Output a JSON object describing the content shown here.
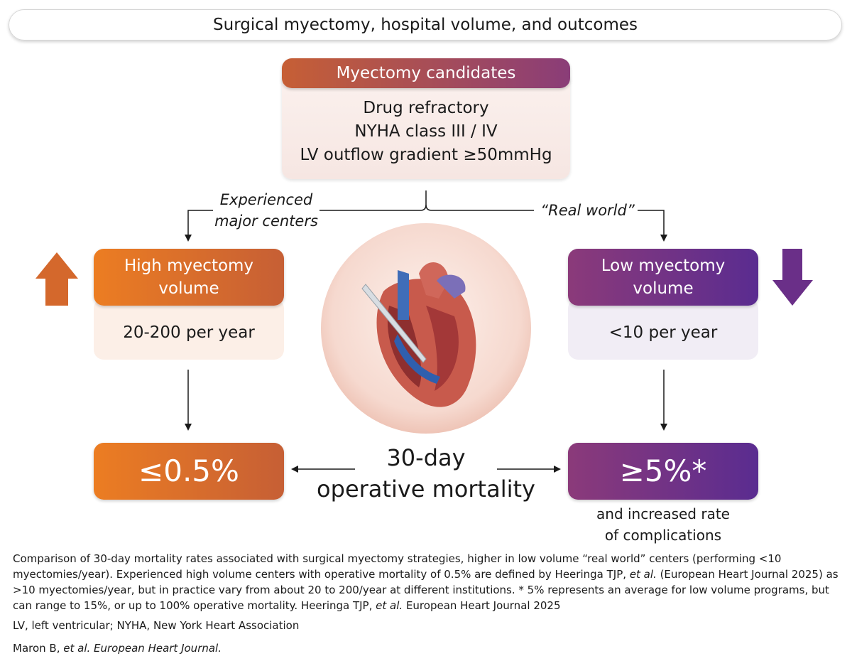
{
  "title": "Surgical myectomy, hospital volume, and outcomes",
  "candidates": {
    "header": "Myectomy candidates",
    "lines": [
      "Drug refractory",
      "NYHA class III / IV",
      "LV outflow gradient ≥50mmHg"
    ]
  },
  "left": {
    "branch": "Experienced major centers",
    "title": "High myectomy volume",
    "detail": "20-200 per year",
    "result": "≤0.5%"
  },
  "right": {
    "branch": "“Real world”",
    "title": "Low myectomy volume",
    "detail": "<10 per year",
    "result": "≥5%*",
    "note": "and increased rate of complications"
  },
  "center": {
    "lines": [
      "30-day",
      "operative mortality"
    ]
  },
  "footnotes": [
    [
      "Comparison of 30-day mortality rates associated with surgical myectomy strategies, higher in low volume “real world” centers (performing <10 myectomies/year).  Experienced high volume centers with operative mortality of 0.5% are defined by Heeringa TJP, ",
      "et al.",
      " (European Heart Journal 2025) as >10 myectomies/year, but in practice vary from about 20 to 200/year at different institutions.  * 5% represents an average for low volume programs, but can range to 15%, or up to 100% operative mortality. Heeringa TJP, ",
      "et al.",
      " European Heart Journal 2025"
    ],
    [
      "LV, left ventricular; NYHA, New York Heart Association"
    ],
    [
      "Maron B, ",
      "et al. European Heart Journal."
    ]
  ]
}
